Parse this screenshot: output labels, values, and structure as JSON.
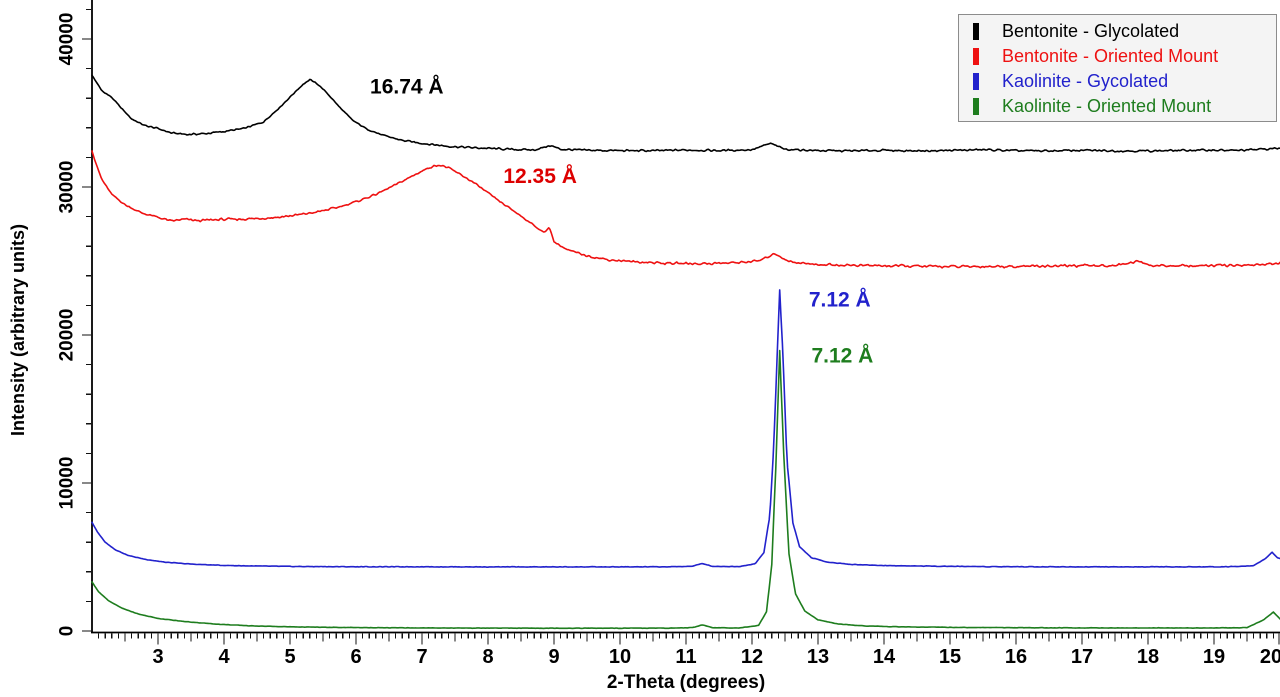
{
  "chart_data": {
    "type": "line",
    "title": "",
    "xlabel": "2-Theta (degrees)",
    "ylabel": "Intensity (arbitrary units)",
    "xlim": [
      2,
      20
    ],
    "ylim": [
      0,
      42600
    ],
    "x_major_tick_labels": [
      3,
      4,
      5,
      6,
      7,
      8,
      9,
      10,
      11,
      12,
      13,
      14,
      15,
      16,
      17,
      18,
      19,
      20
    ],
    "x_minor_step": 0.1,
    "x_medium_step": 0.5,
    "y_major_ticks": [
      0,
      10000,
      20000,
      30000,
      40000
    ],
    "y_minor_step": 2000,
    "grid": false,
    "legend_position": "top-right",
    "series": [
      {
        "name": "Bentonite - Glycolated",
        "color": "#000000",
        "noise": 80,
        "points": [
          [
            2.0,
            37550
          ],
          [
            2.05,
            37200
          ],
          [
            2.15,
            36500
          ],
          [
            2.3,
            36050
          ],
          [
            2.45,
            35300
          ],
          [
            2.6,
            34600
          ],
          [
            2.8,
            34150
          ],
          [
            3.0,
            33950
          ],
          [
            3.2,
            33650
          ],
          [
            3.45,
            33550
          ],
          [
            3.7,
            33600
          ],
          [
            4.0,
            33750
          ],
          [
            4.3,
            33950
          ],
          [
            4.6,
            34400
          ],
          [
            4.85,
            35400
          ],
          [
            5.05,
            36300
          ],
          [
            5.2,
            36950
          ],
          [
            5.3,
            37250
          ],
          [
            5.42,
            36950
          ],
          [
            5.55,
            36400
          ],
          [
            5.75,
            35400
          ],
          [
            5.95,
            34500
          ],
          [
            6.15,
            33950
          ],
          [
            6.4,
            33500
          ],
          [
            6.7,
            33150
          ],
          [
            7.0,
            32950
          ],
          [
            7.4,
            32750
          ],
          [
            7.8,
            32650
          ],
          [
            8.3,
            32550
          ],
          [
            8.7,
            32500
          ],
          [
            8.95,
            32800
          ],
          [
            9.1,
            32550
          ],
          [
            9.5,
            32480
          ],
          [
            10.0,
            32460
          ],
          [
            10.5,
            32450
          ],
          [
            11.0,
            32500
          ],
          [
            11.5,
            32460
          ],
          [
            12.0,
            32520
          ],
          [
            12.28,
            32950
          ],
          [
            12.5,
            32550
          ],
          [
            13.0,
            32460
          ],
          [
            13.5,
            32440
          ],
          [
            14.0,
            32480
          ],
          [
            14.5,
            32440
          ],
          [
            15.0,
            32470
          ],
          [
            15.5,
            32520
          ],
          [
            16.0,
            32450
          ],
          [
            16.5,
            32440
          ],
          [
            17.0,
            32480
          ],
          [
            17.5,
            32440
          ],
          [
            18.0,
            32440
          ],
          [
            18.5,
            32470
          ],
          [
            19.0,
            32500
          ],
          [
            19.3,
            32460
          ],
          [
            19.6,
            32520
          ],
          [
            20.0,
            32620
          ]
        ]
      },
      {
        "name": "Bentonite - Oriented Mount",
        "color": "#ee1111",
        "noise": 100,
        "points": [
          [
            2.0,
            32450
          ],
          [
            2.05,
            31700
          ],
          [
            2.15,
            30500
          ],
          [
            2.3,
            29500
          ],
          [
            2.5,
            28800
          ],
          [
            2.75,
            28250
          ],
          [
            3.0,
            27950
          ],
          [
            3.2,
            27700
          ],
          [
            3.4,
            27820
          ],
          [
            3.6,
            27720
          ],
          [
            3.9,
            27800
          ],
          [
            4.2,
            27820
          ],
          [
            4.5,
            27870
          ],
          [
            4.8,
            27950
          ],
          [
            5.1,
            28100
          ],
          [
            5.4,
            28300
          ],
          [
            5.7,
            28600
          ],
          [
            6.0,
            29000
          ],
          [
            6.3,
            29500
          ],
          [
            6.6,
            30150
          ],
          [
            6.9,
            30850
          ],
          [
            7.1,
            31300
          ],
          [
            7.25,
            31500
          ],
          [
            7.4,
            31300
          ],
          [
            7.6,
            30800
          ],
          [
            7.8,
            30250
          ],
          [
            8.0,
            29600
          ],
          [
            8.2,
            28950
          ],
          [
            8.45,
            28200
          ],
          [
            8.7,
            27400
          ],
          [
            8.85,
            26900
          ],
          [
            8.93,
            27300
          ],
          [
            9.0,
            26300
          ],
          [
            9.2,
            25750
          ],
          [
            9.5,
            25350
          ],
          [
            9.8,
            25100
          ],
          [
            10.2,
            24950
          ],
          [
            10.7,
            24850
          ],
          [
            11.2,
            24820
          ],
          [
            11.7,
            24870
          ],
          [
            12.1,
            25000
          ],
          [
            12.35,
            25500
          ],
          [
            12.55,
            24980
          ],
          [
            12.9,
            24780
          ],
          [
            13.4,
            24720
          ],
          [
            14.0,
            24680
          ],
          [
            14.6,
            24640
          ],
          [
            15.2,
            24620
          ],
          [
            15.8,
            24640
          ],
          [
            16.4,
            24660
          ],
          [
            17.0,
            24680
          ],
          [
            17.5,
            24700
          ],
          [
            17.85,
            24980
          ],
          [
            18.05,
            24690
          ],
          [
            18.5,
            24670
          ],
          [
            19.0,
            24690
          ],
          [
            19.5,
            24720
          ],
          [
            20.0,
            24830
          ]
        ]
      },
      {
        "name": "Kaolinite - Gycolated",
        "color": "#2222cc",
        "noise": 22,
        "points": [
          [
            2.0,
            7350
          ],
          [
            2.08,
            6700
          ],
          [
            2.2,
            6000
          ],
          [
            2.35,
            5500
          ],
          [
            2.55,
            5100
          ],
          [
            2.8,
            4850
          ],
          [
            3.1,
            4650
          ],
          [
            3.5,
            4520
          ],
          [
            4.0,
            4430
          ],
          [
            4.5,
            4390
          ],
          [
            5.0,
            4360
          ],
          [
            5.5,
            4350
          ],
          [
            6.0,
            4340
          ],
          [
            7.0,
            4340
          ],
          [
            8.0,
            4330
          ],
          [
            9.0,
            4330
          ],
          [
            10.0,
            4330
          ],
          [
            10.8,
            4340
          ],
          [
            11.1,
            4380
          ],
          [
            11.25,
            4560
          ],
          [
            11.4,
            4370
          ],
          [
            11.8,
            4350
          ],
          [
            12.05,
            4550
          ],
          [
            12.18,
            5300
          ],
          [
            12.27,
            7800
          ],
          [
            12.33,
            12500
          ],
          [
            12.38,
            18500
          ],
          [
            12.42,
            23050
          ],
          [
            12.47,
            18500
          ],
          [
            12.53,
            11500
          ],
          [
            12.62,
            7300
          ],
          [
            12.72,
            5700
          ],
          [
            12.9,
            4950
          ],
          [
            13.15,
            4650
          ],
          [
            13.5,
            4500
          ],
          [
            14.0,
            4420
          ],
          [
            14.8,
            4380
          ],
          [
            15.6,
            4350
          ],
          [
            16.5,
            4340
          ],
          [
            17.5,
            4330
          ],
          [
            18.5,
            4330
          ],
          [
            19.2,
            4340
          ],
          [
            19.6,
            4420
          ],
          [
            19.78,
            4900
          ],
          [
            19.88,
            5320
          ],
          [
            19.96,
            4950
          ],
          [
            20.0,
            4900
          ]
        ]
      },
      {
        "name": "Kaolinite - Oriented Mount",
        "color": "#1e7d1e",
        "noise": 16,
        "points": [
          [
            2.0,
            3320
          ],
          [
            2.1,
            2650
          ],
          [
            2.25,
            2050
          ],
          [
            2.45,
            1550
          ],
          [
            2.7,
            1150
          ],
          [
            3.0,
            850
          ],
          [
            3.4,
            640
          ],
          [
            3.9,
            460
          ],
          [
            4.4,
            350
          ],
          [
            4.9,
            290
          ],
          [
            5.4,
            255
          ],
          [
            6.0,
            230
          ],
          [
            6.6,
            215
          ],
          [
            7.2,
            205
          ],
          [
            8.0,
            195
          ],
          [
            9.0,
            190
          ],
          [
            10.0,
            188
          ],
          [
            10.8,
            195
          ],
          [
            11.1,
            230
          ],
          [
            11.25,
            420
          ],
          [
            11.4,
            225
          ],
          [
            11.8,
            200
          ],
          [
            12.1,
            380
          ],
          [
            12.22,
            1300
          ],
          [
            12.3,
            4500
          ],
          [
            12.36,
            11000
          ],
          [
            12.42,
            18950
          ],
          [
            12.48,
            12000
          ],
          [
            12.56,
            5200
          ],
          [
            12.66,
            2500
          ],
          [
            12.8,
            1350
          ],
          [
            13.0,
            750
          ],
          [
            13.3,
            480
          ],
          [
            13.7,
            340
          ],
          [
            14.2,
            285
          ],
          [
            15.0,
            245
          ],
          [
            16.0,
            225
          ],
          [
            17.0,
            210
          ],
          [
            18.0,
            205
          ],
          [
            19.0,
            205
          ],
          [
            19.5,
            230
          ],
          [
            19.75,
            750
          ],
          [
            19.9,
            1280
          ],
          [
            20.0,
            820
          ]
        ]
      }
    ],
    "annotations": [
      {
        "text": "16.74 Å",
        "x": 6.77,
        "y": 36750,
        "color": "#000000"
      },
      {
        "text": "12.35 Å",
        "x": 8.79,
        "y": 30700,
        "color": "#dd0000"
      },
      {
        "text": "7.12 Å",
        "x": 13.33,
        "y": 22350,
        "color": "#2222cc"
      },
      {
        "text": "7.12 Å",
        "x": 13.37,
        "y": 18580,
        "color": "#1e7d1e"
      }
    ]
  }
}
